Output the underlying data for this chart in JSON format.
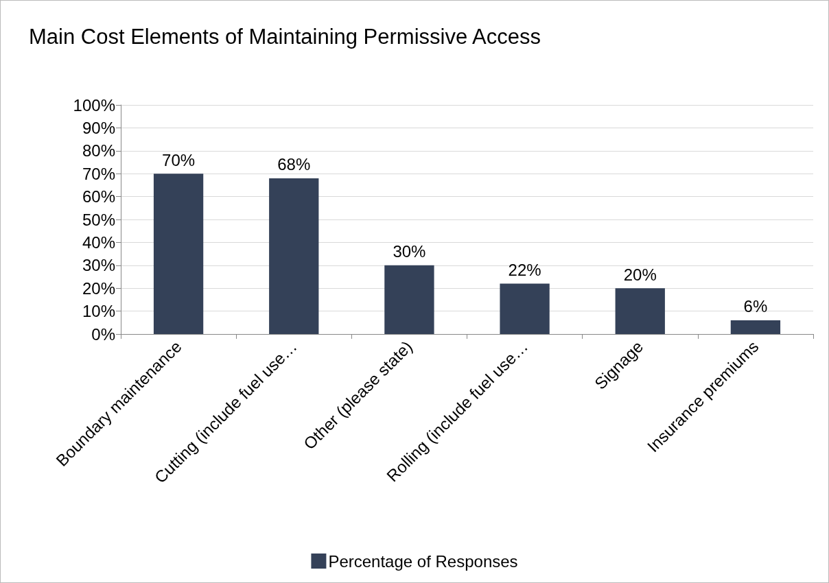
{
  "chart_data": {
    "type": "bar",
    "title": "Main Cost Elements of Maintaining Permissive Access",
    "categories": [
      "Boundary maintenance",
      "Cutting (include fuel use…",
      "Other (please state)",
      "Rolling (include fuel use…",
      "Signage",
      "Insurance premiums"
    ],
    "series": [
      {
        "name": "Percentage of Responses",
        "color": "#344158",
        "values": [
          70,
          68,
          30,
          22,
          20,
          6
        ],
        "value_labels": [
          "70%",
          "68%",
          "30%",
          "22%",
          "20%",
          "6%"
        ]
      }
    ],
    "ylim": [
      0,
      100
    ],
    "yticks": [
      {
        "value": 0,
        "label": "0%"
      },
      {
        "value": 10,
        "label": "10%"
      },
      {
        "value": 20,
        "label": "20%"
      },
      {
        "value": 30,
        "label": "30%"
      },
      {
        "value": 40,
        "label": "40%"
      },
      {
        "value": 50,
        "label": "50%"
      },
      {
        "value": 60,
        "label": "60%"
      },
      {
        "value": 70,
        "label": "70%"
      },
      {
        "value": 80,
        "label": "80%"
      },
      {
        "value": 90,
        "label": "90%"
      },
      {
        "value": 100,
        "label": "100%"
      }
    ],
    "grid": "y",
    "legend": "bottom"
  }
}
